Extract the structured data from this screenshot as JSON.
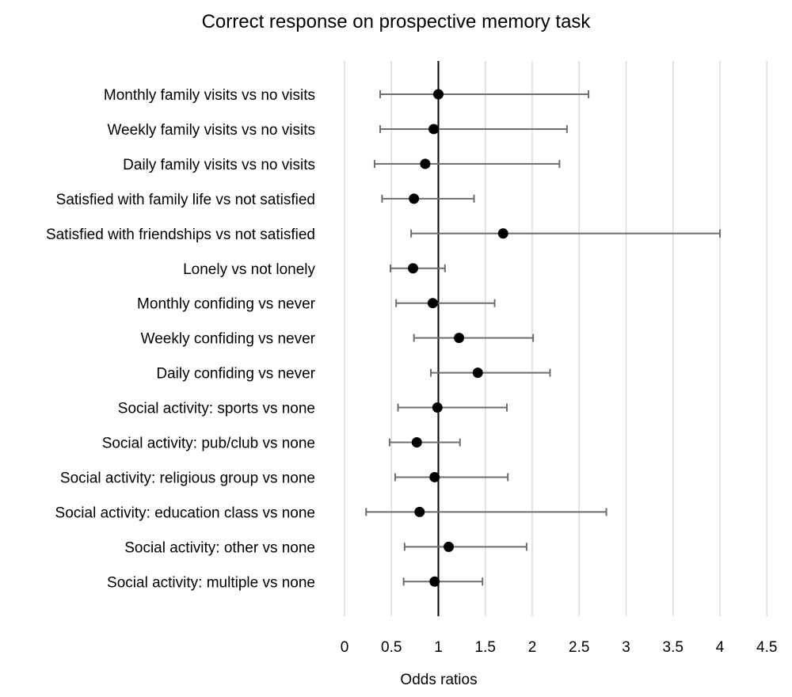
{
  "chart_data": {
    "type": "forest",
    "title": "Correct response on prospective memory task",
    "xlabel": "Odds ratios",
    "ylabel": "",
    "xlim": [
      0,
      4.5
    ],
    "xticks": [
      "0",
      "0.5",
      "1",
      "1.5",
      "2",
      "2.5",
      "3",
      "3.5",
      "4",
      "4.5"
    ],
    "xtick_values": [
      0,
      0.5,
      1,
      1.5,
      2,
      2.5,
      3,
      3.5,
      4,
      4.5
    ],
    "reference_line": 1,
    "grid": "vertical",
    "legend": null,
    "categories": [
      "Monthly family visits vs no visits",
      "Weekly family visits vs no visits",
      "Daily family visits vs no visits",
      "Satisfied with family life vs not satisfied",
      "Satisfied with friendships vs not satisfied",
      "Lonely vs not lonely",
      "Monthly confiding vs never",
      "Weekly confiding vs never",
      "Daily confiding vs never",
      "Social activity: sports vs none",
      "Social activity: pub/club vs none",
      "Social activity: religious group vs none",
      "Social activity: education class vs none",
      "Social activity: other vs none",
      "Social activity: multiple vs none"
    ],
    "values": [
      1.0,
      0.95,
      0.86,
      0.74,
      1.69,
      0.73,
      0.94,
      1.22,
      1.42,
      0.99,
      0.77,
      0.96,
      0.8,
      1.11,
      0.96
    ],
    "ci_lower": [
      0.38,
      0.38,
      0.32,
      0.4,
      0.71,
      0.49,
      0.55,
      0.74,
      0.92,
      0.57,
      0.48,
      0.54,
      0.23,
      0.64,
      0.63
    ],
    "ci_upper": [
      2.6,
      2.37,
      2.29,
      1.38,
      4.0,
      1.07,
      1.6,
      2.01,
      2.19,
      1.73,
      1.23,
      1.74,
      2.79,
      1.94,
      1.47
    ]
  },
  "colors": {
    "grid": "#d9d9d9",
    "errorbar": "#6d6d6d",
    "point": "#000000",
    "reference": "#000000"
  }
}
